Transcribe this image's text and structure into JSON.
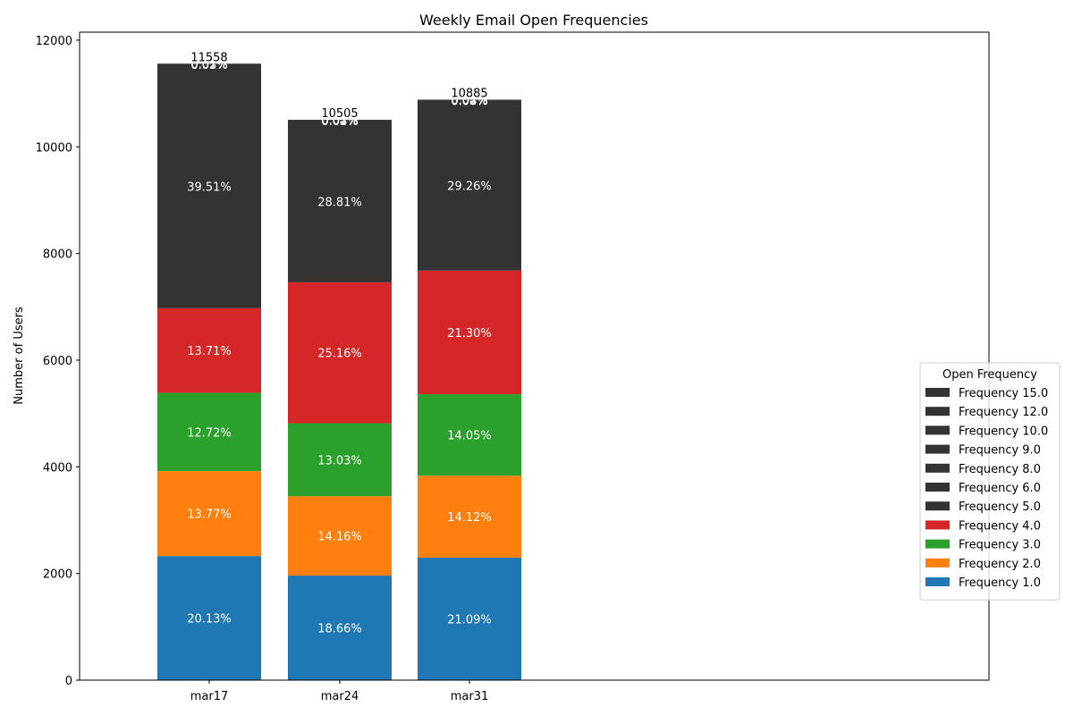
{
  "chart_data": {
    "type": "bar",
    "stacked": true,
    "title": "Weekly Email Open Frequencies",
    "xlabel": "",
    "ylabel": "Number of Users",
    "ylim": [
      0,
      12150
    ],
    "yticks": [
      0,
      2000,
      4000,
      6000,
      8000,
      10000,
      12000
    ],
    "categories": [
      "mar17",
      "mar24",
      "mar31"
    ],
    "totals": [
      11558,
      10505,
      10885
    ],
    "series": [
      {
        "name": "Frequency 1.0",
        "color": "#1f77b4",
        "values": [
          2327,
          1960,
          2296
        ],
        "labels": [
          "20.13%",
          "18.66%",
          "21.09%"
        ]
      },
      {
        "name": "Frequency 2.0",
        "color": "#ff7f0e",
        "values": [
          1592,
          1488,
          1537
        ],
        "labels": [
          "13.77%",
          "14.16%",
          "14.12%"
        ]
      },
      {
        "name": "Frequency 3.0",
        "color": "#2ca02c",
        "values": [
          1470,
          1369,
          1529
        ],
        "labels": [
          "12.72%",
          "13.03%",
          "14.05%"
        ]
      },
      {
        "name": "Frequency 4.0",
        "color": "#d62728",
        "values": [
          1585,
          2643,
          2318
        ],
        "labels": [
          "13.71%",
          "25.16%",
          "21.30%"
        ]
      },
      {
        "name": "Frequency 5.0",
        "color": "#333333",
        "values": [
          4566,
          3026,
          3185
        ],
        "labels": [
          "39.51%",
          "28.81%",
          "29.26%"
        ]
      },
      {
        "name": "Frequency 6.0",
        "color": "#333333",
        "values": [
          6,
          5,
          6
        ],
        "labels": [
          "0.05%",
          "0.05%",
          "0.06%"
        ]
      },
      {
        "name": "Frequency 8.0",
        "color": "#333333",
        "values": [
          4,
          4,
          4
        ],
        "labels": [
          "0.03%",
          "0.04%",
          "0.04%"
        ]
      },
      {
        "name": "Frequency 9.0",
        "color": "#333333",
        "values": [
          3,
          3,
          3
        ],
        "labels": [
          "0.03%",
          "0.03%",
          "0.03%"
        ]
      },
      {
        "name": "Frequency 10.0",
        "color": "#333333",
        "values": [
          2,
          3,
          3
        ],
        "labels": [
          "0.02%",
          "0.03%",
          "0.03%"
        ]
      },
      {
        "name": "Frequency 12.0",
        "color": "#333333",
        "values": [
          2,
          2,
          2
        ],
        "labels": [
          "0.02%",
          "0.02%",
          "0.02%"
        ]
      },
      {
        "name": "Frequency 15.0",
        "color": "#333333",
        "values": [
          1,
          2,
          2
        ],
        "labels": [
          "0.01%",
          "0.02%",
          "0.02%"
        ]
      }
    ],
    "legend": {
      "title": "Open Frequency",
      "placement": "center-right",
      "order": [
        "Frequency 15.0",
        "Frequency 12.0",
        "Frequency 10.0",
        "Frequency 9.0",
        "Frequency 8.0",
        "Frequency 6.0",
        "Frequency 5.0",
        "Frequency 4.0",
        "Frequency 3.0",
        "Frequency 2.0",
        "Frequency 1.0"
      ]
    },
    "grid": false
  }
}
